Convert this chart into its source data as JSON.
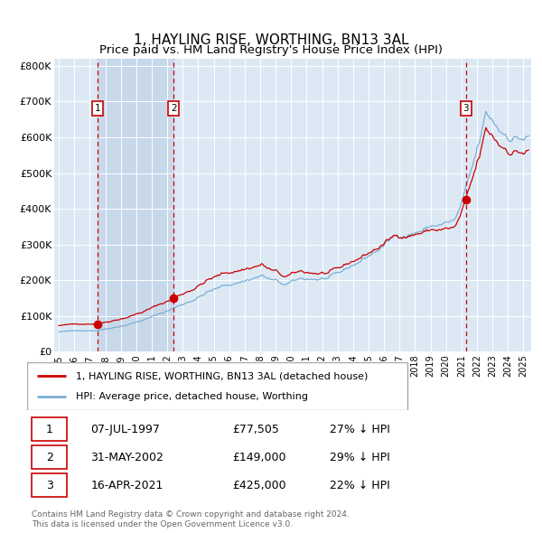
{
  "title": "1, HAYLING RISE, WORTHING, BN13 3AL",
  "subtitle": "Price paid vs. HM Land Registry's House Price Index (HPI)",
  "title_fontsize": 11,
  "subtitle_fontsize": 9.5,
  "ylabel_ticks": [
    "£0",
    "£100K",
    "£200K",
    "£300K",
    "£400K",
    "£500K",
    "£600K",
    "£700K",
    "£800K"
  ],
  "ytick_values": [
    0,
    100000,
    200000,
    300000,
    400000,
    500000,
    600000,
    700000,
    800000
  ],
  "ylim": [
    0,
    820000
  ],
  "xlim_start": 1994.7,
  "xlim_end": 2025.5,
  "background_color": "#ffffff",
  "plot_bg_color": "#dce9f5",
  "grid_color": "#ffffff",
  "hpi_line_color": "#7bafd4",
  "price_line_color": "#cc0000",
  "shade_color": "#c8d8eb",
  "transactions": [
    {
      "label": "1",
      "date_num": 1997.52,
      "price": 77505,
      "pct": "27% ↓ HPI",
      "date_str": "07-JUL-1997"
    },
    {
      "label": "2",
      "date_num": 2002.41,
      "price": 149000,
      "pct": "29% ↓ HPI",
      "date_str": "31-MAY-2002"
    },
    {
      "label": "3",
      "date_num": 2021.29,
      "price": 425000,
      "pct": "22% ↓ HPI",
      "date_str": "16-APR-2021"
    }
  ],
  "legend_line1": "1, HAYLING RISE, WORTHING, BN13 3AL (detached house)",
  "legend_line2": "HPI: Average price, detached house, Worthing",
  "footer_line1": "Contains HM Land Registry data © Crown copyright and database right 2024.",
  "footer_line2": "This data is licensed under the Open Government Licence v3.0.",
  "xtick_years": [
    1995,
    1996,
    1997,
    1998,
    1999,
    2000,
    2001,
    2002,
    2003,
    2004,
    2005,
    2006,
    2007,
    2008,
    2009,
    2010,
    2011,
    2012,
    2013,
    2014,
    2015,
    2016,
    2017,
    2018,
    2019,
    2020,
    2021,
    2022,
    2023,
    2024,
    2025
  ]
}
